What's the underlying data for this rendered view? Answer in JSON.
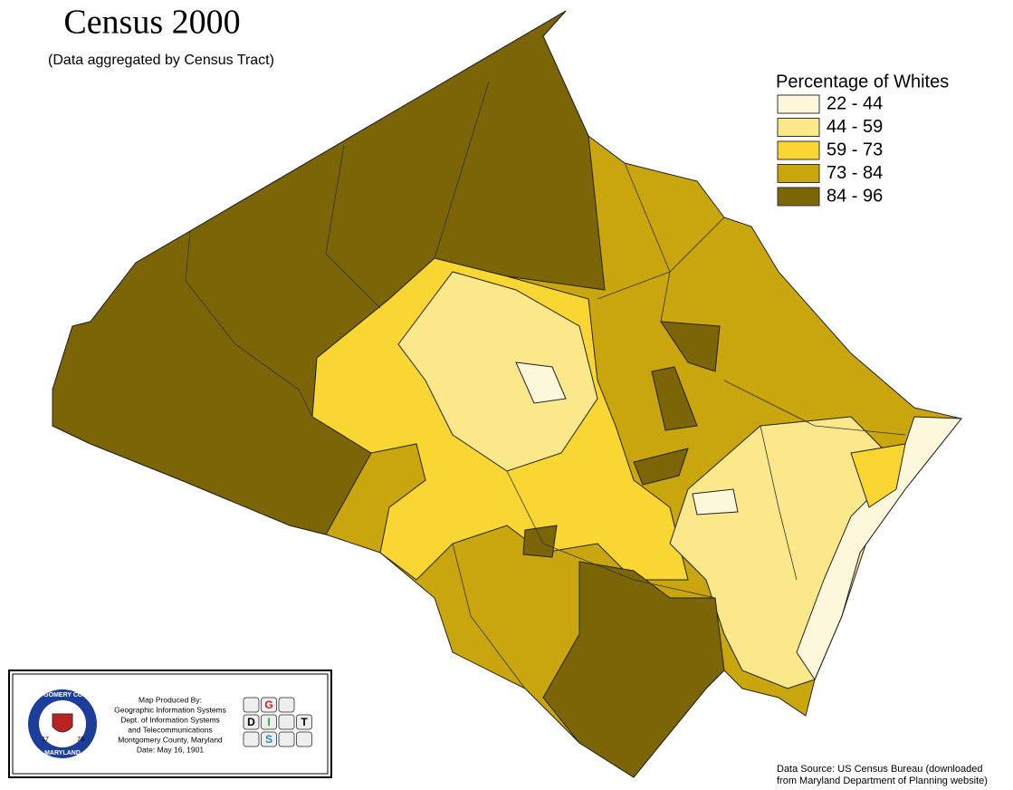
{
  "header": {
    "title": "Census 2000",
    "subtitle": "(Data aggregated by Census Tract)"
  },
  "legend": {
    "title": "Percentage of Whites",
    "items": [
      {
        "label": "22 - 44",
        "color": "#fdf7dc"
      },
      {
        "label": "44 - 59",
        "color": "#fbe88a"
      },
      {
        "label": "59 - 73",
        "color": "#fad632"
      },
      {
        "label": "73 - 84",
        "color": "#c9a60e"
      },
      {
        "label": "84 - 96",
        "color": "#7b6506"
      }
    ]
  },
  "credits": {
    "seal_top": "MONTGOMERY COUNTY",
    "seal_bottom": "MARYLAND",
    "seal_left": "17",
    "seal_right": "76",
    "lines": [
      "Map Produced By:",
      "Geographic Information Systems",
      "Dept. of Information Systems",
      "and Telecommunications",
      "Montgomery County, Maryland",
      "Date: May 16, 1901"
    ],
    "logo": [
      "G",
      "I",
      "D",
      "S",
      "T"
    ]
  },
  "source": [
    "Data Source:  US Census Bureau (downloaded",
    "from Maryland Department of Planning website)"
  ]
}
